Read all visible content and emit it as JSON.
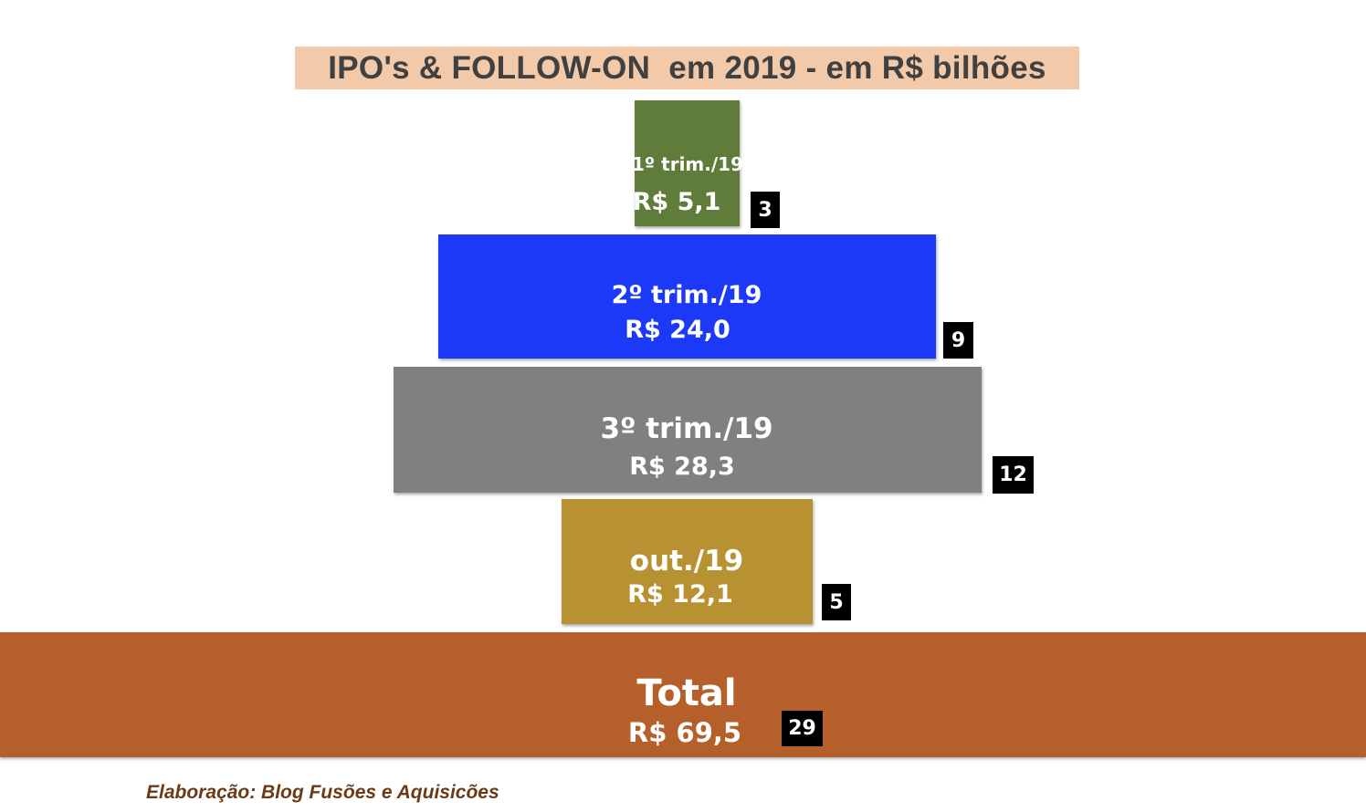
{
  "title": "IPO's & FOLLOW-ON  em 2019 - em R$ bilhões",
  "source": "Elaboração: Blog Fusões e Aquisicões",
  "chart_data": {
    "type": "bar",
    "orientation": "horizontal-stacked-centered",
    "title": "IPO's & FOLLOW-ON  em 2019 - em R$ bilhões",
    "categories": [
      "1º trim./19",
      "2º trim./19",
      "3º trim./19",
      "out./19"
    ],
    "value_labels": [
      "R$ 5,1",
      "R$ 24,0",
      "R$ 28,3",
      "R$ 12,1"
    ],
    "values": [
      5.1,
      24.0,
      28.3,
      12.1
    ],
    "counts": [
      "3",
      "9",
      "12",
      "5"
    ],
    "colors": [
      "#5f7c3a",
      "#1c39f7",
      "#808080",
      "#b89232"
    ],
    "total": {
      "label": "Total",
      "value_label": "R$ 69,5",
      "value": 69.5,
      "count": "29",
      "color": "#b5602a"
    }
  }
}
